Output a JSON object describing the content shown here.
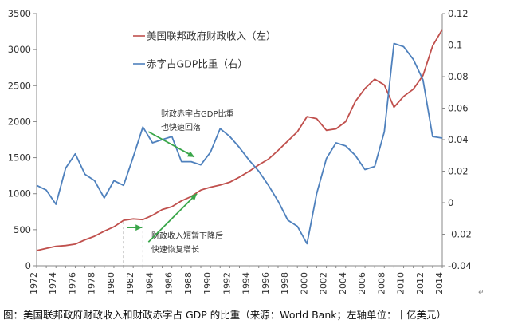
{
  "caption": "图：美国联邦政府财政收入和财政赤字占 GDP 的比重（来源：World Bank；左轴单位：十亿美元）",
  "paragraph_mark": "↵",
  "colors": {
    "revenue": "#c0504d",
    "deficit": "#4f81bd",
    "arrow": "#3aa64a",
    "axis": "#888888"
  },
  "chart_data": {
    "type": "line",
    "title": "",
    "xlabel": "",
    "ylabel": "",
    "y2label": "",
    "x": [
      1972,
      1973,
      1974,
      1975,
      1976,
      1977,
      1978,
      1979,
      1980,
      1981,
      1982,
      1983,
      1984,
      1985,
      1986,
      1987,
      1988,
      1989,
      1990,
      1991,
      1992,
      1993,
      1994,
      1995,
      1996,
      1997,
      1998,
      1999,
      2000,
      2001,
      2002,
      2003,
      2004,
      2005,
      2006,
      2007,
      2008,
      2009,
      2010,
      2011,
      2012,
      2013,
      2014
    ],
    "x_ticks": [
      1972,
      1974,
      1976,
      1978,
      1980,
      1982,
      1984,
      1986,
      1988,
      1990,
      1992,
      1994,
      1996,
      1998,
      2000,
      2002,
      2004,
      2006,
      2008,
      2010,
      2012,
      2014
    ],
    "ylim": [
      0,
      3500
    ],
    "y_ticks": [
      0,
      500,
      1000,
      1500,
      2000,
      2500,
      3000,
      3500
    ],
    "y2lim": [
      -0.04,
      0.12
    ],
    "y2_ticks": [
      -0.04,
      -0.02,
      0,
      0.02,
      0.04,
      0.06,
      0.08,
      0.1,
      0.12
    ],
    "y2_tick_labels": [
      "-0.04",
      "-0.02",
      "0",
      "0.02",
      "0.04",
      "0.06",
      "0.08",
      "0.1",
      "0.12"
    ],
    "series": [
      {
        "name": "美国联邦政府财政收入（左）",
        "axis": "left",
        "values": [
          210,
          240,
          270,
          280,
          300,
          360,
          410,
          480,
          540,
          630,
          650,
          640,
          700,
          780,
          820,
          900,
          960,
          1050,
          1090,
          1120,
          1160,
          1230,
          1310,
          1400,
          1480,
          1600,
          1730,
          1860,
          2070,
          2040,
          1880,
          1900,
          2000,
          2280,
          2460,
          2590,
          2510,
          2200,
          2350,
          2450,
          2640,
          3050,
          3280
        ]
      },
      {
        "name": "赤字占GDP比重（右）",
        "axis": "right",
        "values": [
          0.011,
          0.008,
          -0.001,
          0.022,
          0.031,
          0.018,
          0.014,
          0.003,
          0.014,
          0.011,
          0.029,
          0.048,
          0.038,
          0.04,
          0.042,
          0.026,
          0.026,
          0.024,
          0.032,
          0.047,
          0.042,
          0.035,
          0.027,
          0.02,
          0.011,
          0.001,
          -0.011,
          -0.015,
          -0.026,
          0.006,
          0.028,
          0.038,
          0.036,
          0.03,
          0.021,
          0.023,
          0.045,
          0.101,
          0.099,
          0.091,
          0.078,
          0.042,
          0.041
        ]
      }
    ],
    "legend": "top-left",
    "annotations": [
      {
        "text_lines": [
          "财政赤字占GDP比重",
          "也快速回落"
        ]
      },
      {
        "text_lines": [
          "财政收入短暂下降后",
          "快速恢复增长"
        ]
      }
    ]
  }
}
